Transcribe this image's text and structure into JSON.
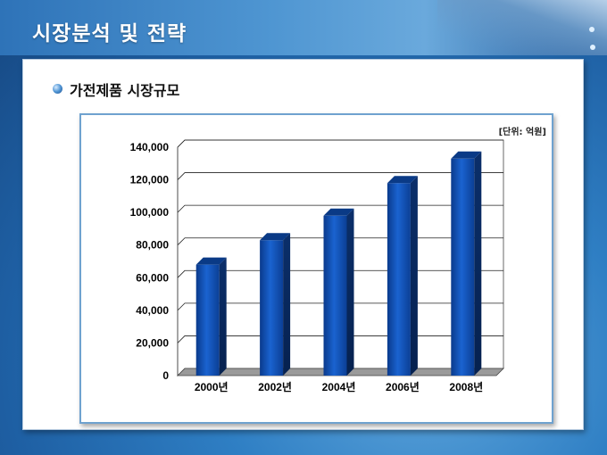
{
  "slide": {
    "title": "시장분석 및 전략"
  },
  "section": {
    "title": "가전제품 시장규모"
  },
  "unit_note": "[단위: 억원]",
  "chart_data": {
    "type": "bar",
    "categories": [
      "2000년",
      "2002년",
      "2004년",
      "2006년",
      "2008년"
    ],
    "values": [
      68000,
      83000,
      98000,
      118000,
      133000
    ],
    "ylim": [
      0,
      140000
    ],
    "yticks": [
      0,
      20000,
      40000,
      60000,
      80000,
      100000,
      120000,
      140000
    ],
    "ytick_labels": [
      "0",
      "20,000",
      "40,000",
      "60,000",
      "80,000",
      "100,000",
      "120,000",
      "140,000"
    ],
    "grid": true,
    "three_d": true,
    "bar_color": "#0d4fb8"
  }
}
